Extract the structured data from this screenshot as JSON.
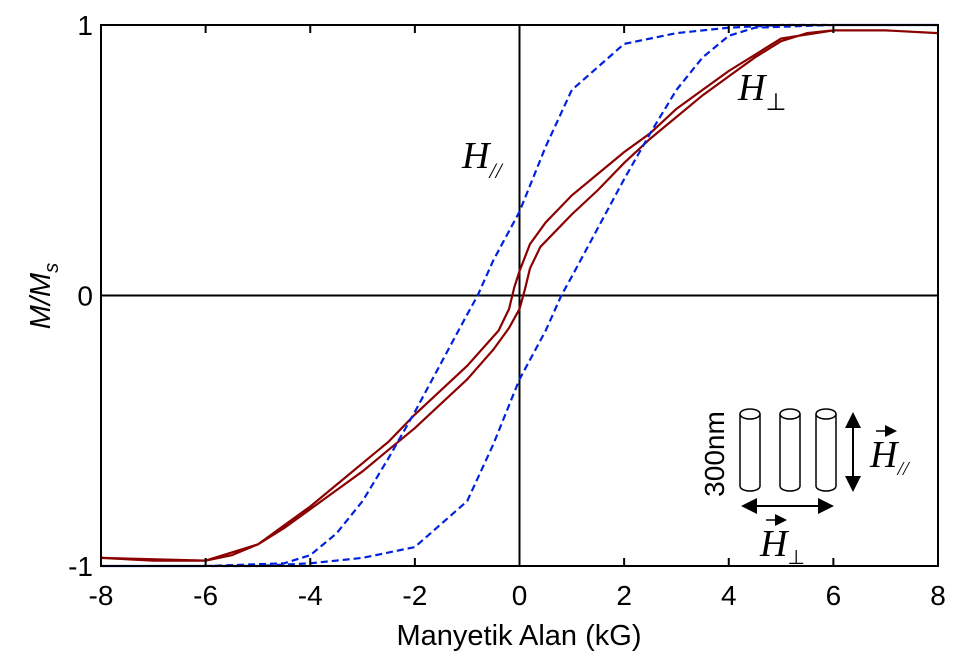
{
  "chart_data": {
    "type": "line",
    "xlabel": "Manyetik Alan (kG)",
    "ylabel": "M/M",
    "ylabel_sub": "s",
    "xlim": [
      -8,
      8
    ],
    "ylim": [
      -1,
      1
    ],
    "xticks": [
      -8,
      -6,
      -4,
      -2,
      0,
      2,
      4,
      6,
      8
    ],
    "yticks": [
      -1,
      0,
      1
    ],
    "series": [
      {
        "name": "H",
        "name_sub": "⊥",
        "color": "#8b0000",
        "dash": false,
        "x": [
          -8,
          -7,
          -6,
          -5.5,
          -5,
          -4.5,
          -4,
          -3.5,
          -3,
          -2.5,
          -2,
          -1.5,
          -1,
          -0.5,
          -0.2,
          0,
          0.1,
          0.2,
          0.4,
          1,
          1.5,
          2,
          2.5,
          3,
          3.5,
          4,
          4.5,
          5,
          5.5,
          6,
          7,
          8,
          7,
          6,
          5,
          4.5,
          4,
          3.5,
          3,
          2.5,
          2,
          1.5,
          1,
          0.5,
          0.2,
          0,
          -0.1,
          -0.2,
          -0.4,
          -1,
          -1.5,
          -2,
          -2.5,
          -3,
          -3.5,
          -4,
          -4.5,
          -5,
          -6,
          -8
        ],
        "values": [
          -0.97,
          -0.98,
          -0.98,
          -0.96,
          -0.92,
          -0.86,
          -0.79,
          -0.72,
          -0.65,
          -0.57,
          -0.49,
          -0.4,
          -0.31,
          -0.2,
          -0.12,
          -0.05,
          0.02,
          0.1,
          0.18,
          0.3,
          0.39,
          0.49,
          0.58,
          0.66,
          0.74,
          0.81,
          0.88,
          0.94,
          0.97,
          0.98,
          0.98,
          0.97,
          0.98,
          0.98,
          0.95,
          0.89,
          0.83,
          0.76,
          0.69,
          0.6,
          0.53,
          0.45,
          0.37,
          0.27,
          0.19,
          0.09,
          0.03,
          -0.05,
          -0.13,
          -0.26,
          -0.35,
          -0.44,
          -0.54,
          -0.62,
          -0.7,
          -0.78,
          -0.85,
          -0.92,
          -0.98,
          -0.97
        ]
      },
      {
        "name": "H",
        "name_sub": "//",
        "color": "#0022dd",
        "dash": true,
        "x": [
          8,
          5,
          4,
          3,
          2,
          1,
          0.5,
          0,
          -0.5,
          -0.8,
          -1,
          -1.5,
          -2,
          -2.5,
          -3,
          -3.5,
          -4,
          -4.5,
          -6,
          -8,
          -5,
          -4,
          -3,
          -2,
          -1,
          -0.5,
          0,
          0.5,
          0.8,
          1,
          1.5,
          2,
          2.5,
          3,
          3.5,
          4,
          4.5,
          6,
          8
        ],
        "values": [
          1.0,
          1.0,
          0.99,
          0.97,
          0.93,
          0.76,
          0.55,
          0.31,
          0.13,
          0.0,
          -0.07,
          -0.25,
          -0.43,
          -0.6,
          -0.76,
          -0.88,
          -0.96,
          -0.99,
          -1.0,
          -1.0,
          -1.0,
          -0.99,
          -0.97,
          -0.93,
          -0.76,
          -0.55,
          -0.31,
          -0.13,
          0.0,
          0.07,
          0.25,
          0.43,
          0.6,
          0.76,
          0.88,
          0.96,
          0.99,
          1.0,
          1.0
        ]
      }
    ],
    "inset_label": "300nm"
  }
}
